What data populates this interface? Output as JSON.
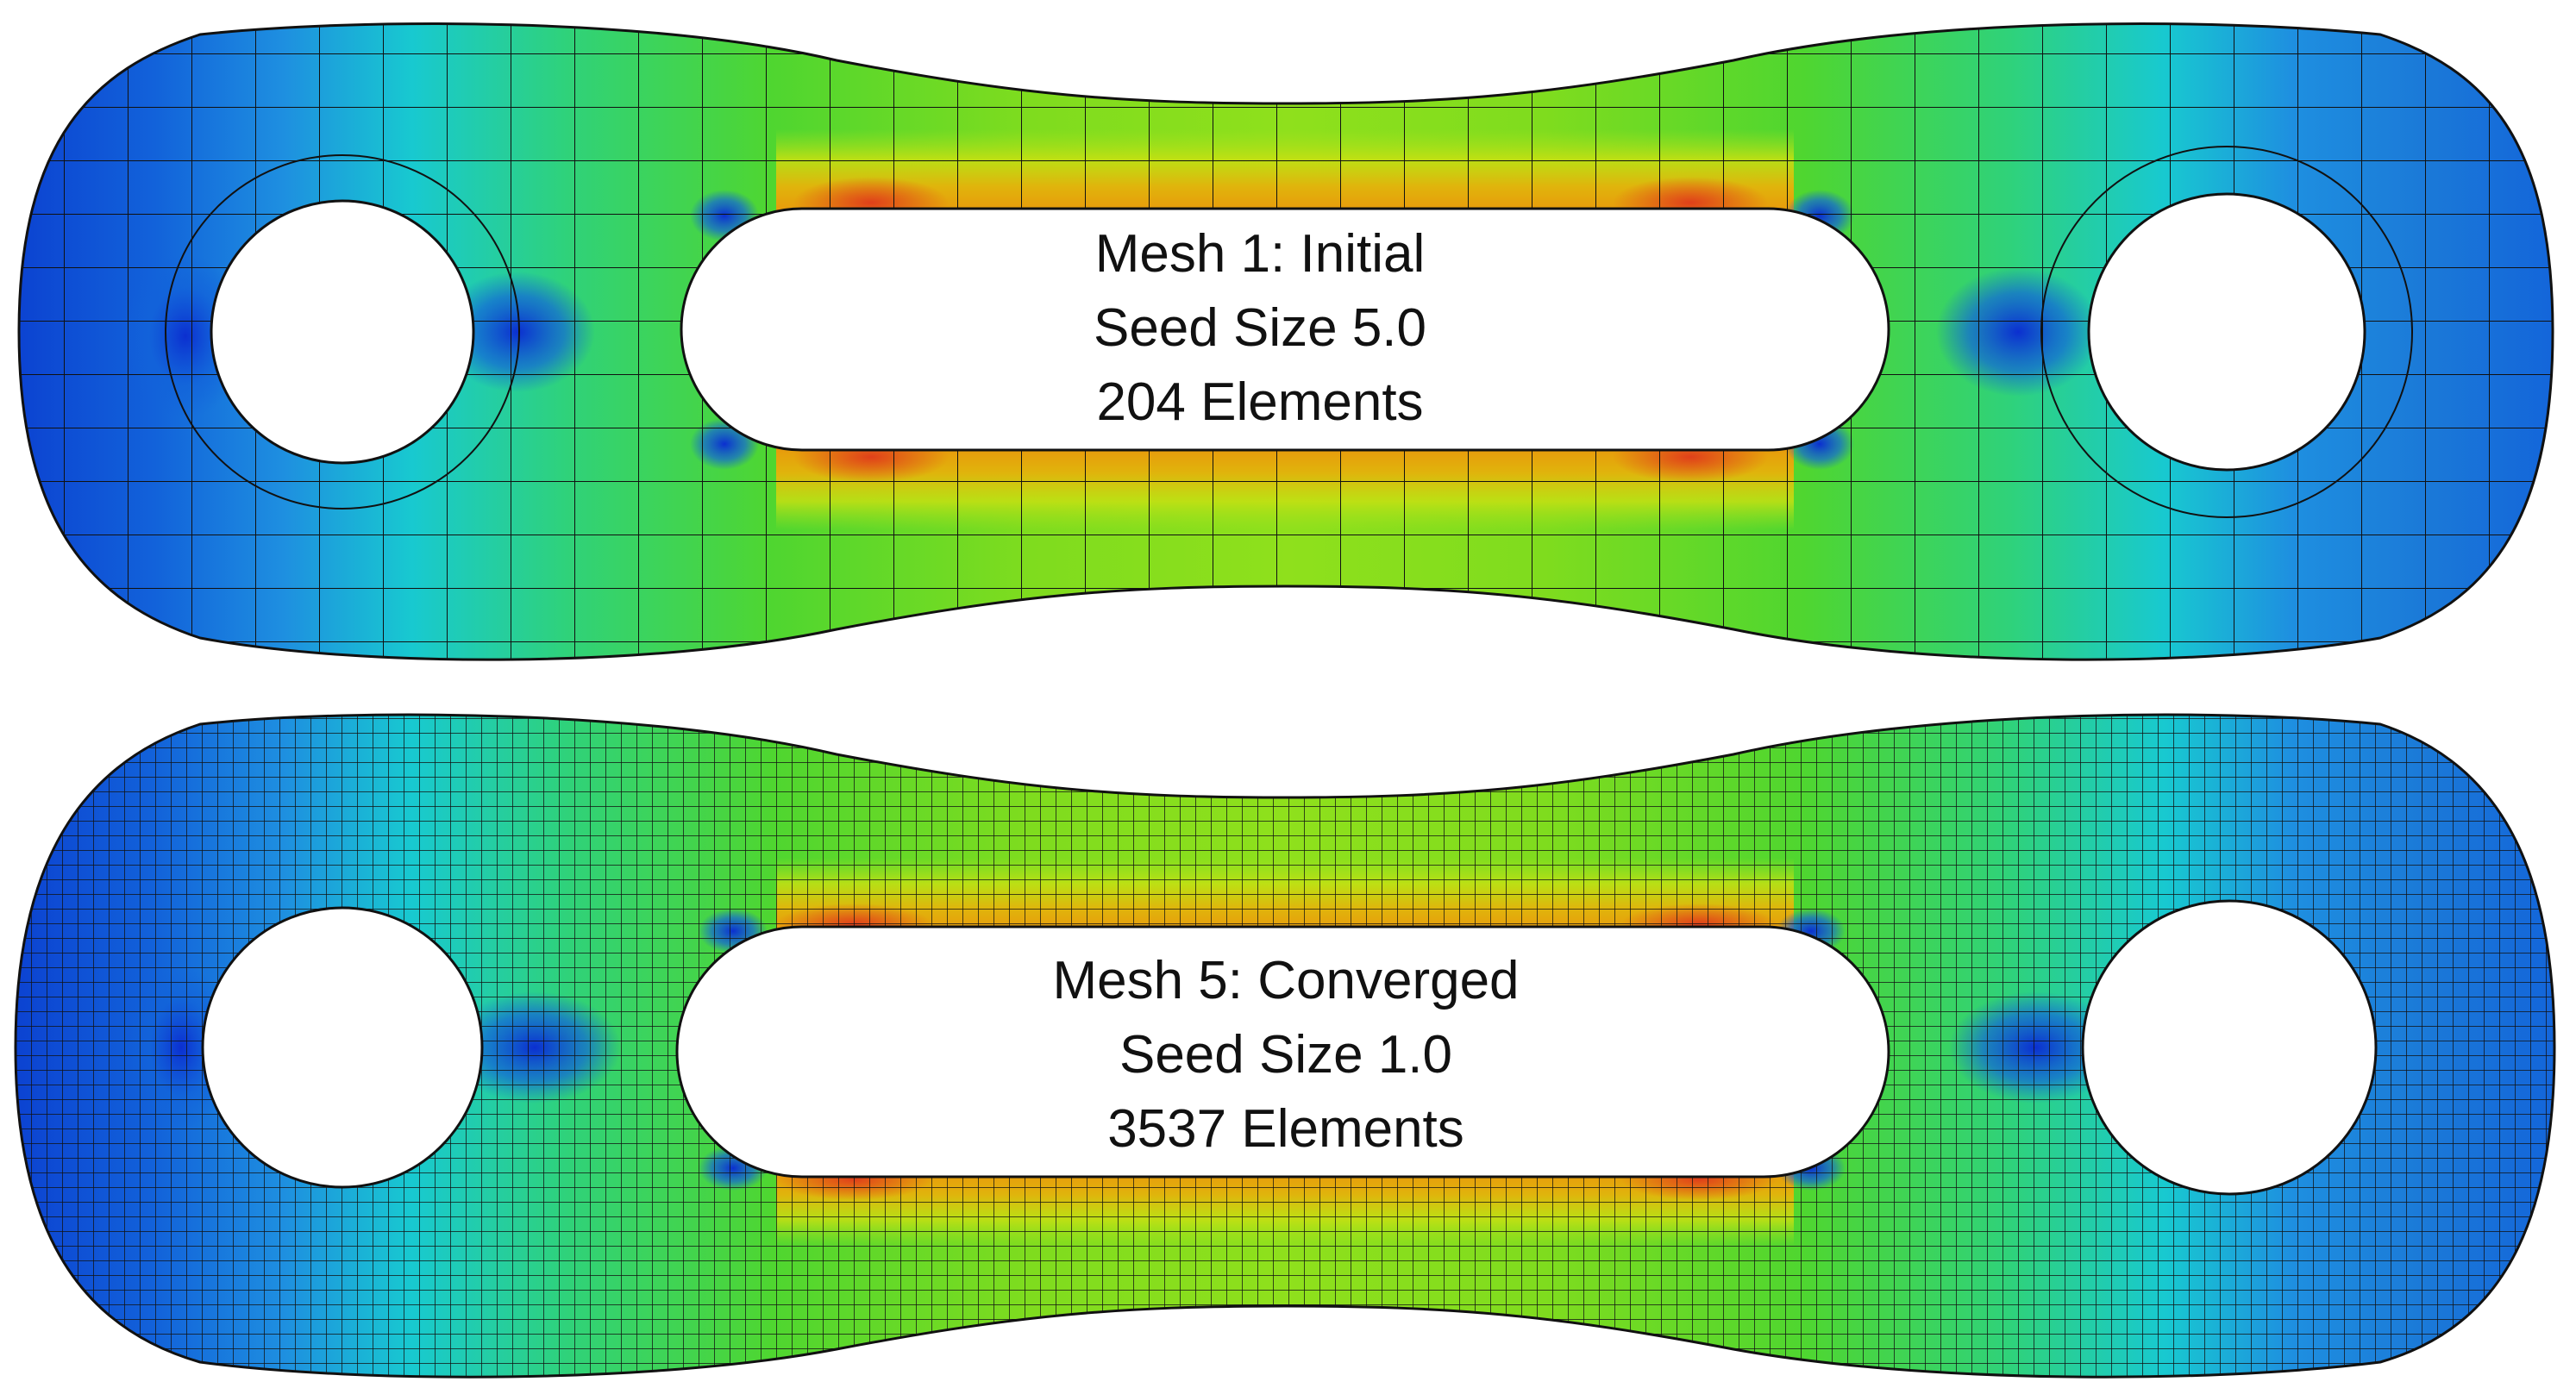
{
  "panels": [
    {
      "id": "mesh-1",
      "mesh_density": "coarse",
      "caption": [
        "Mesh 1: Initial",
        "Seed Size 5.0",
        "204 Elements"
      ]
    },
    {
      "id": "mesh-5",
      "mesh_density": "fine",
      "caption": [
        "Mesh 5: Converged",
        "Seed Size 1.0",
        "3537 Elements"
      ]
    }
  ],
  "colors": {
    "low": "#0b3fd0",
    "low_mid": "#1e8fe0",
    "cyan": "#18d6c8",
    "green": "#2fd24a",
    "yellow_green": "#a8e21c",
    "yellow": "#d8d80a",
    "orange": "#e89a0c",
    "red": "#e0401a",
    "mesh_line": "#111111"
  }
}
